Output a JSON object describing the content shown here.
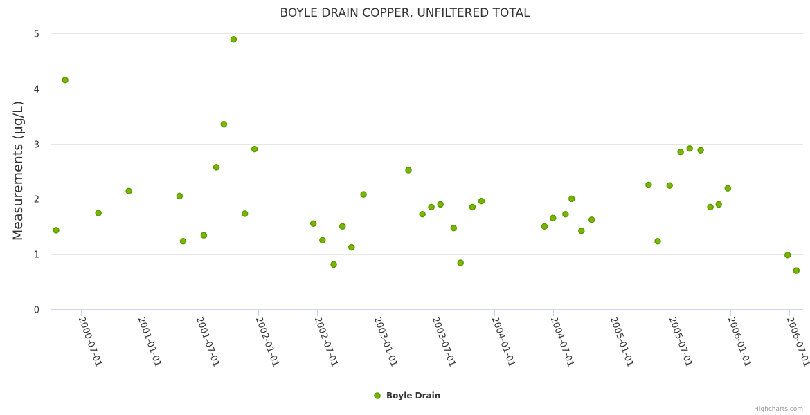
{
  "chart_data": {
    "type": "scatter",
    "title": "BOYLE DRAIN COPPER, UNFILTERED TOTAL",
    "xlabel": "",
    "ylabel": "Measurements (µg/L)",
    "ylim": [
      0,
      5
    ],
    "yticks": [
      "0",
      "1",
      "2",
      "3",
      "4",
      "5"
    ],
    "xlim": [
      "2000-03-15",
      "2006-08-01"
    ],
    "xticks": [
      "2000-07-01",
      "2001-01-01",
      "2001-07-01",
      "2002-01-01",
      "2002-07-01",
      "2003-01-01",
      "2003-07-01",
      "2004-01-01",
      "2004-07-01",
      "2005-01-01",
      "2005-07-01",
      "2006-01-01",
      "2006-07-01"
    ],
    "grid": true,
    "legend_position": "bottom-center",
    "credits": "Highcharts.com",
    "series": [
      {
        "name": "Boyle Drain",
        "color": "#5a9a00",
        "points": [
          [
            "2000-04-15",
            1.43
          ],
          [
            "2000-05-13",
            4.15
          ],
          [
            "2000-08-24",
            1.74
          ],
          [
            "2000-11-26",
            2.14
          ],
          [
            "2001-05-02",
            2.05
          ],
          [
            "2001-05-13",
            1.23
          ],
          [
            "2001-07-16",
            1.34
          ],
          [
            "2001-08-24",
            2.57
          ],
          [
            "2001-09-16",
            3.35
          ],
          [
            "2001-10-16",
            4.89
          ],
          [
            "2001-11-20",
            1.73
          ],
          [
            "2001-12-20",
            2.9
          ],
          [
            "2002-06-20",
            1.55
          ],
          [
            "2002-07-18",
            1.25
          ],
          [
            "2002-08-22",
            0.81
          ],
          [
            "2002-09-18",
            1.5
          ],
          [
            "2002-10-16",
            1.12
          ],
          [
            "2002-11-22",
            2.08
          ],
          [
            "2003-04-10",
            2.52
          ],
          [
            "2003-05-23",
            1.72
          ],
          [
            "2003-06-20",
            1.85
          ],
          [
            "2003-07-18",
            1.9
          ],
          [
            "2003-08-28",
            1.47
          ],
          [
            "2003-09-18",
            0.84
          ],
          [
            "2003-10-25",
            1.85
          ],
          [
            "2003-11-22",
            1.96
          ],
          [
            "2004-06-04",
            1.5
          ],
          [
            "2004-06-30",
            1.65
          ],
          [
            "2004-08-08",
            1.72
          ],
          [
            "2004-08-27",
            2.0
          ],
          [
            "2004-09-26",
            1.42
          ],
          [
            "2004-10-28",
            1.62
          ],
          [
            "2005-04-22",
            2.25
          ],
          [
            "2005-05-20",
            1.23
          ],
          [
            "2005-06-26",
            2.24
          ],
          [
            "2005-07-30",
            2.85
          ],
          [
            "2005-08-27",
            2.91
          ],
          [
            "2005-09-30",
            2.88
          ],
          [
            "2005-10-30",
            1.85
          ],
          [
            "2005-11-25",
            1.9
          ],
          [
            "2005-12-23",
            2.19
          ],
          [
            "2006-06-26",
            0.98
          ],
          [
            "2006-07-23",
            0.7
          ]
        ]
      }
    ]
  }
}
